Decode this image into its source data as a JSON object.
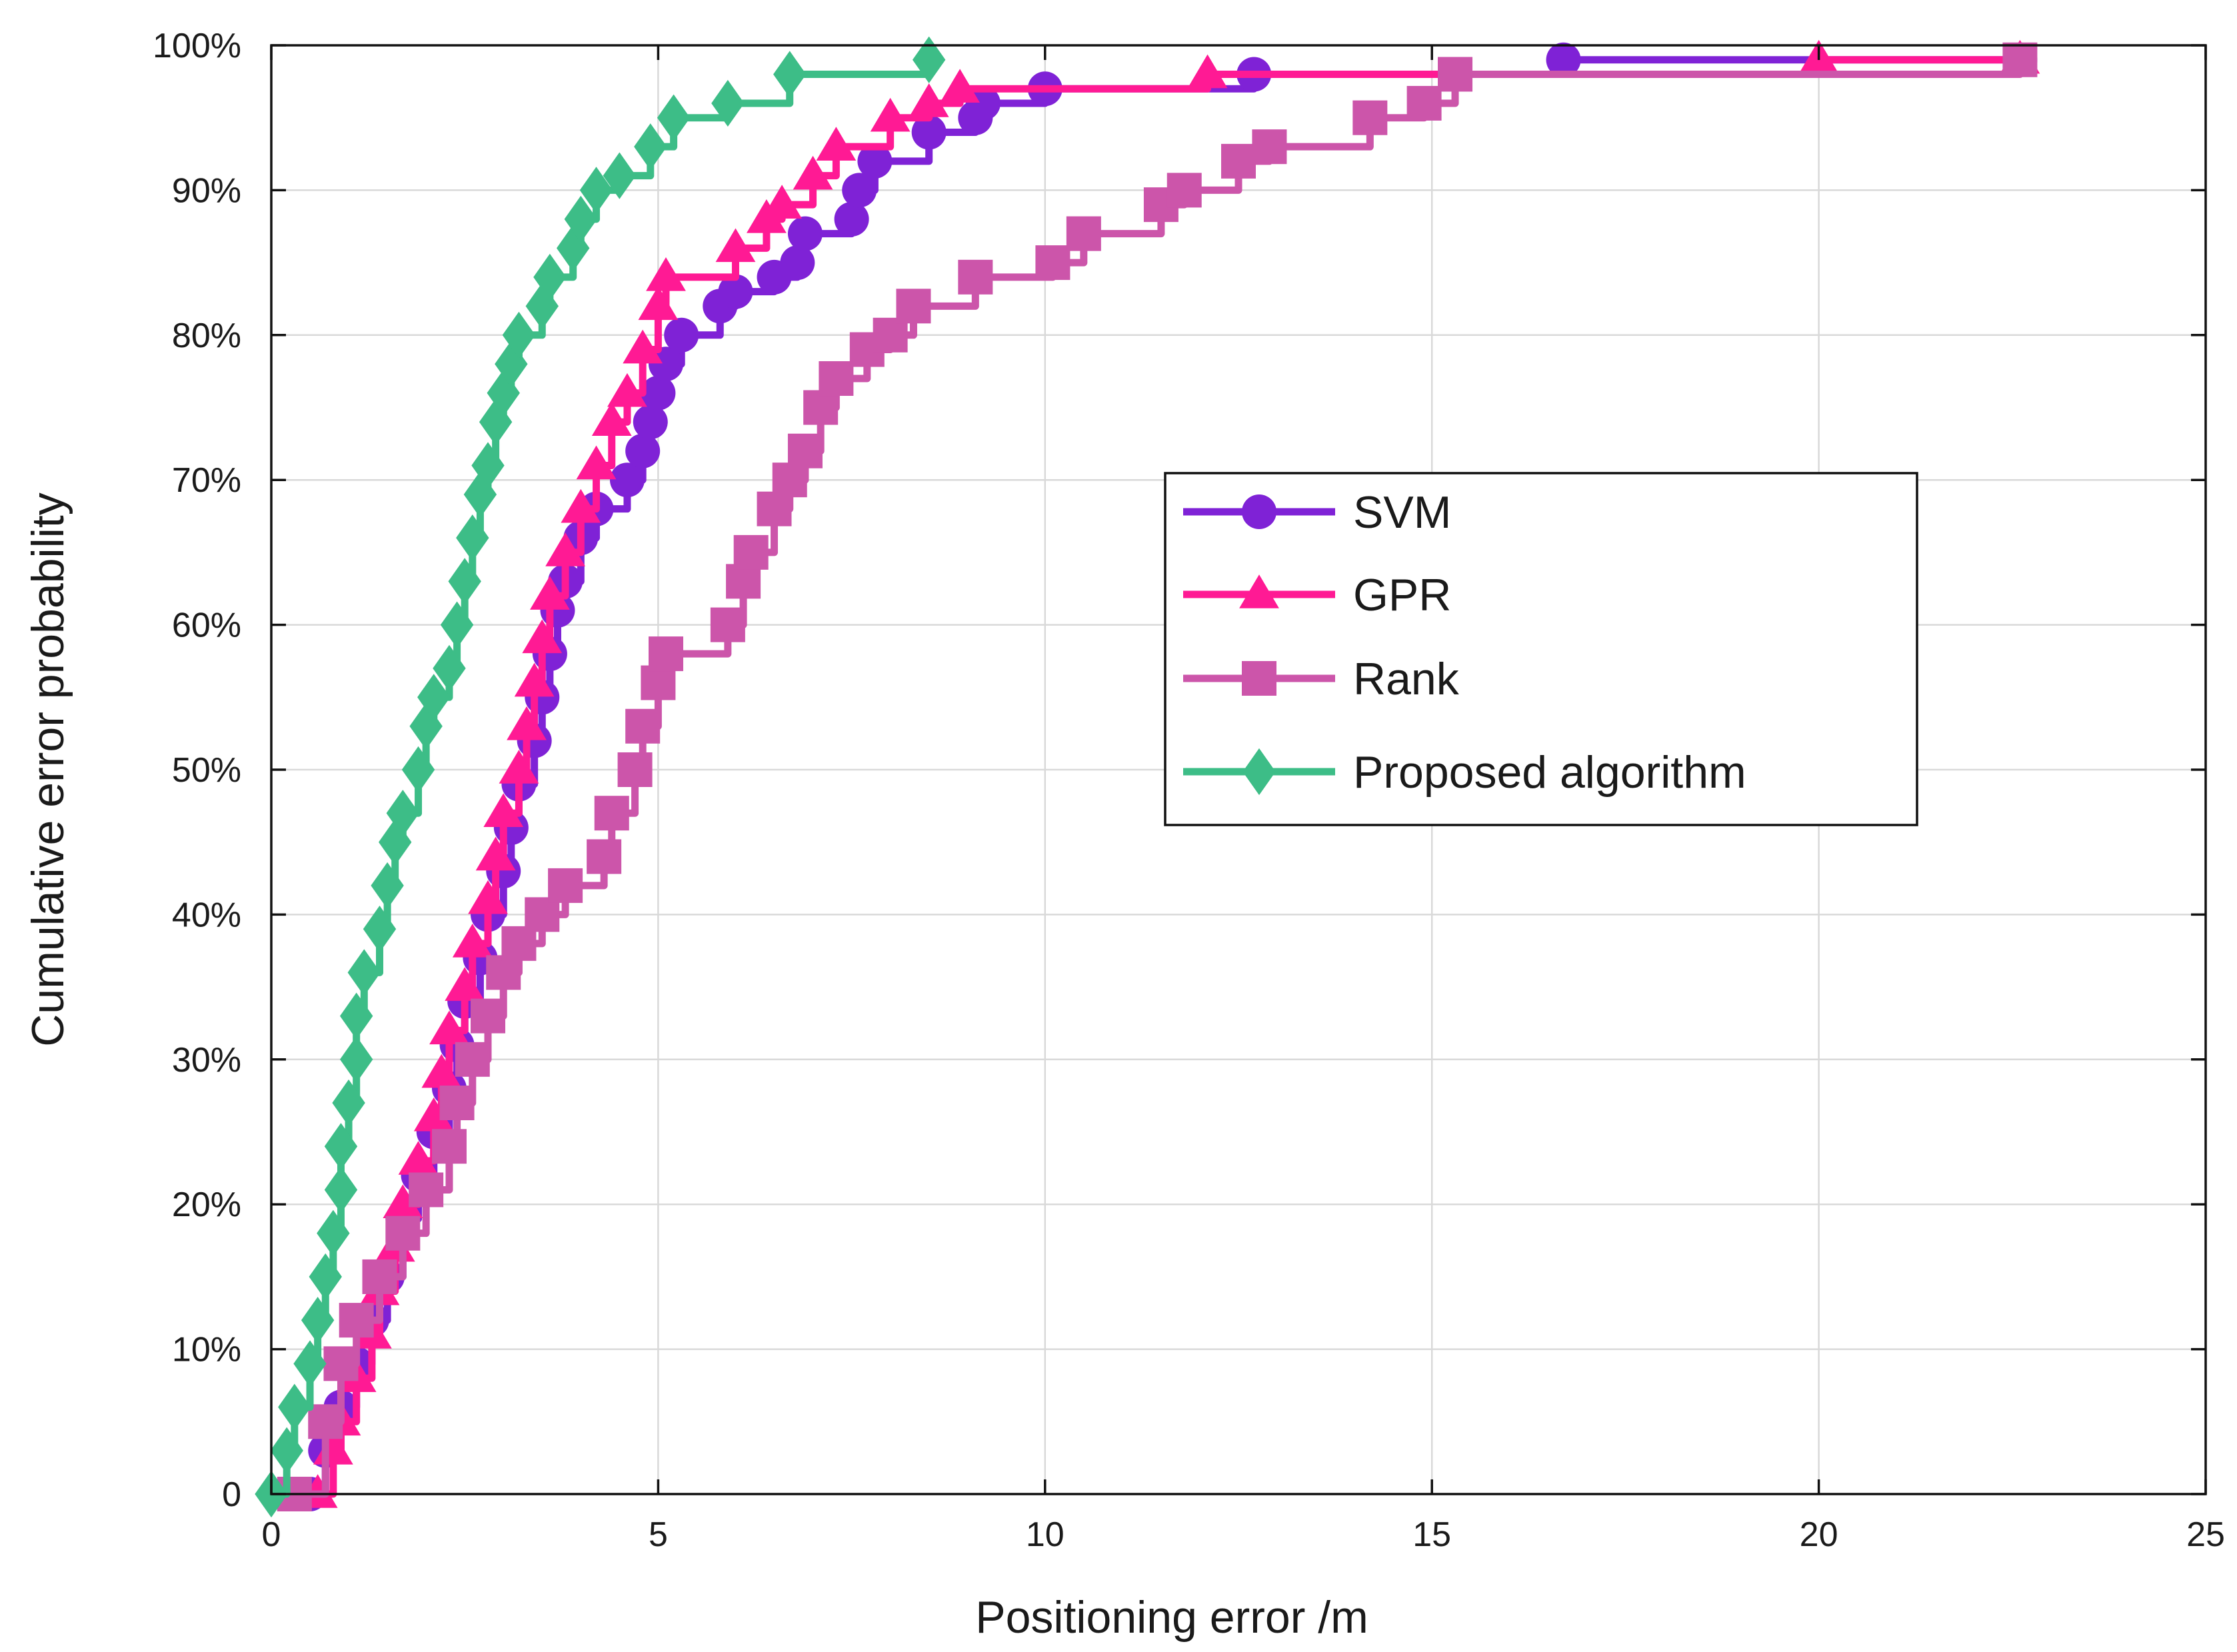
{
  "chart_data": {
    "type": "line",
    "title": "",
    "xlabel": "Positioning error /m",
    "ylabel": "Cumulative error probability",
    "xlim": [
      0,
      25
    ],
    "ylim": [
      0,
      100
    ],
    "grid": true,
    "legend_position": "right-middle",
    "x_ticks": [
      {
        "value": 0,
        "label": "0"
      },
      {
        "value": 5,
        "label": "5"
      },
      {
        "value": 10,
        "label": "10"
      },
      {
        "value": 15,
        "label": "15"
      },
      {
        "value": 20,
        "label": "20"
      },
      {
        "value": 25,
        "label": "25"
      }
    ],
    "y_ticks": [
      {
        "value": 0,
        "label": "0"
      },
      {
        "value": 10,
        "label": "10%"
      },
      {
        "value": 20,
        "label": "20%"
      },
      {
        "value": 30,
        "label": "30%"
      },
      {
        "value": 40,
        "label": "40%"
      },
      {
        "value": 50,
        "label": "50%"
      },
      {
        "value": 60,
        "label": "60%"
      },
      {
        "value": 70,
        "label": "70%"
      },
      {
        "value": 80,
        "label": "80%"
      },
      {
        "value": 90,
        "label": "90%"
      },
      {
        "value": 100,
        "label": "100%"
      }
    ],
    "series": [
      {
        "name": "SVM",
        "color": "#7f22d6",
        "marker": "circle",
        "points": [
          [
            0.5,
            0
          ],
          [
            0.7,
            3
          ],
          [
            0.9,
            6
          ],
          [
            1.1,
            9
          ],
          [
            1.3,
            12
          ],
          [
            1.5,
            15
          ],
          [
            1.7,
            19
          ],
          [
            1.9,
            22
          ],
          [
            2.1,
            25
          ],
          [
            2.3,
            28
          ],
          [
            2.4,
            31
          ],
          [
            2.5,
            34
          ],
          [
            2.7,
            37
          ],
          [
            2.8,
            40
          ],
          [
            3.0,
            43
          ],
          [
            3.1,
            46
          ],
          [
            3.2,
            49
          ],
          [
            3.4,
            52
          ],
          [
            3.5,
            55
          ],
          [
            3.6,
            58
          ],
          [
            3.7,
            61
          ],
          [
            3.8,
            63
          ],
          [
            4.0,
            66
          ],
          [
            4.2,
            68
          ],
          [
            4.6,
            70
          ],
          [
            4.8,
            72
          ],
          [
            4.9,
            74
          ],
          [
            5.0,
            76
          ],
          [
            5.1,
            78
          ],
          [
            5.3,
            80
          ],
          [
            5.8,
            82
          ],
          [
            6.0,
            83
          ],
          [
            6.5,
            84
          ],
          [
            6.8,
            85
          ],
          [
            6.9,
            87
          ],
          [
            7.5,
            88
          ],
          [
            7.6,
            90
          ],
          [
            7.8,
            92
          ],
          [
            8.5,
            94
          ],
          [
            9.1,
            95
          ],
          [
            9.2,
            96
          ],
          [
            10.0,
            97
          ],
          [
            12.7,
            98
          ],
          [
            16.7,
            99
          ],
          [
            22.6,
            99
          ]
        ]
      },
      {
        "name": "GPR",
        "color": "#ff1a94",
        "marker": "triangle",
        "points": [
          [
            0.6,
            0
          ],
          [
            0.8,
            3
          ],
          [
            0.9,
            5
          ],
          [
            1.1,
            8
          ],
          [
            1.3,
            11
          ],
          [
            1.4,
            14
          ],
          [
            1.6,
            17
          ],
          [
            1.7,
            20
          ],
          [
            1.9,
            23
          ],
          [
            2.1,
            26
          ],
          [
            2.2,
            29
          ],
          [
            2.3,
            32
          ],
          [
            2.5,
            35
          ],
          [
            2.6,
            38
          ],
          [
            2.8,
            41
          ],
          [
            2.9,
            44
          ],
          [
            3.0,
            47
          ],
          [
            3.2,
            50
          ],
          [
            3.3,
            53
          ],
          [
            3.4,
            56
          ],
          [
            3.5,
            59
          ],
          [
            3.6,
            62
          ],
          [
            3.8,
            65
          ],
          [
            4.0,
            68
          ],
          [
            4.2,
            71
          ],
          [
            4.4,
            74
          ],
          [
            4.6,
            76
          ],
          [
            4.8,
            79
          ],
          [
            5.0,
            82
          ],
          [
            5.1,
            84
          ],
          [
            6.0,
            86
          ],
          [
            6.4,
            88
          ],
          [
            6.6,
            89
          ],
          [
            7.0,
            91
          ],
          [
            7.3,
            93
          ],
          [
            8.0,
            95
          ],
          [
            8.5,
            96
          ],
          [
            8.9,
            97
          ],
          [
            12.1,
            98
          ],
          [
            20.0,
            99
          ],
          [
            22.6,
            99
          ]
        ]
      },
      {
        "name": "Rank",
        "color": "#cc55aa",
        "marker": "square",
        "points": [
          [
            0.3,
            0
          ],
          [
            0.7,
            5
          ],
          [
            0.9,
            9
          ],
          [
            1.1,
            12
          ],
          [
            1.4,
            15
          ],
          [
            1.7,
            18
          ],
          [
            2.0,
            21
          ],
          [
            2.3,
            24
          ],
          [
            2.4,
            27
          ],
          [
            2.6,
            30
          ],
          [
            2.8,
            33
          ],
          [
            3.0,
            36
          ],
          [
            3.2,
            38
          ],
          [
            3.5,
            40
          ],
          [
            3.8,
            42
          ],
          [
            4.3,
            44
          ],
          [
            4.4,
            47
          ],
          [
            4.7,
            50
          ],
          [
            4.8,
            53
          ],
          [
            5.0,
            56
          ],
          [
            5.1,
            58
          ],
          [
            5.9,
            60
          ],
          [
            6.1,
            63
          ],
          [
            6.2,
            65
          ],
          [
            6.5,
            68
          ],
          [
            6.7,
            70
          ],
          [
            6.9,
            72
          ],
          [
            7.1,
            75
          ],
          [
            7.3,
            77
          ],
          [
            7.7,
            79
          ],
          [
            8.0,
            80
          ],
          [
            8.3,
            82
          ],
          [
            9.1,
            84
          ],
          [
            10.1,
            85
          ],
          [
            10.5,
            87
          ],
          [
            11.5,
            89
          ],
          [
            11.8,
            90
          ],
          [
            12.5,
            92
          ],
          [
            12.9,
            93
          ],
          [
            14.2,
            95
          ],
          [
            14.9,
            96
          ],
          [
            15.3,
            98
          ],
          [
            22.6,
            99
          ]
        ]
      },
      {
        "name": "Proposed algorithm",
        "color": "#3dbd87",
        "marker": "diamond",
        "points": [
          [
            0.0,
            0
          ],
          [
            0.2,
            3
          ],
          [
            0.3,
            6
          ],
          [
            0.5,
            9
          ],
          [
            0.6,
            12
          ],
          [
            0.7,
            15
          ],
          [
            0.8,
            18
          ],
          [
            0.9,
            21
          ],
          [
            0.9,
            24
          ],
          [
            1.0,
            27
          ],
          [
            1.1,
            30
          ],
          [
            1.1,
            33
          ],
          [
            1.2,
            36
          ],
          [
            1.4,
            39
          ],
          [
            1.5,
            42
          ],
          [
            1.6,
            45
          ],
          [
            1.7,
            47
          ],
          [
            1.9,
            50
          ],
          [
            2.0,
            53
          ],
          [
            2.1,
            55
          ],
          [
            2.3,
            57
          ],
          [
            2.4,
            60
          ],
          [
            2.5,
            63
          ],
          [
            2.6,
            66
          ],
          [
            2.7,
            69
          ],
          [
            2.8,
            71
          ],
          [
            2.9,
            74
          ],
          [
            3.0,
            76
          ],
          [
            3.1,
            78
          ],
          [
            3.2,
            80
          ],
          [
            3.5,
            82
          ],
          [
            3.6,
            84
          ],
          [
            3.9,
            86
          ],
          [
            4.0,
            88
          ],
          [
            4.2,
            90
          ],
          [
            4.5,
            91
          ],
          [
            4.9,
            93
          ],
          [
            5.2,
            95
          ],
          [
            5.9,
            96
          ],
          [
            6.7,
            98
          ],
          [
            8.5,
            99
          ]
        ]
      }
    ]
  }
}
